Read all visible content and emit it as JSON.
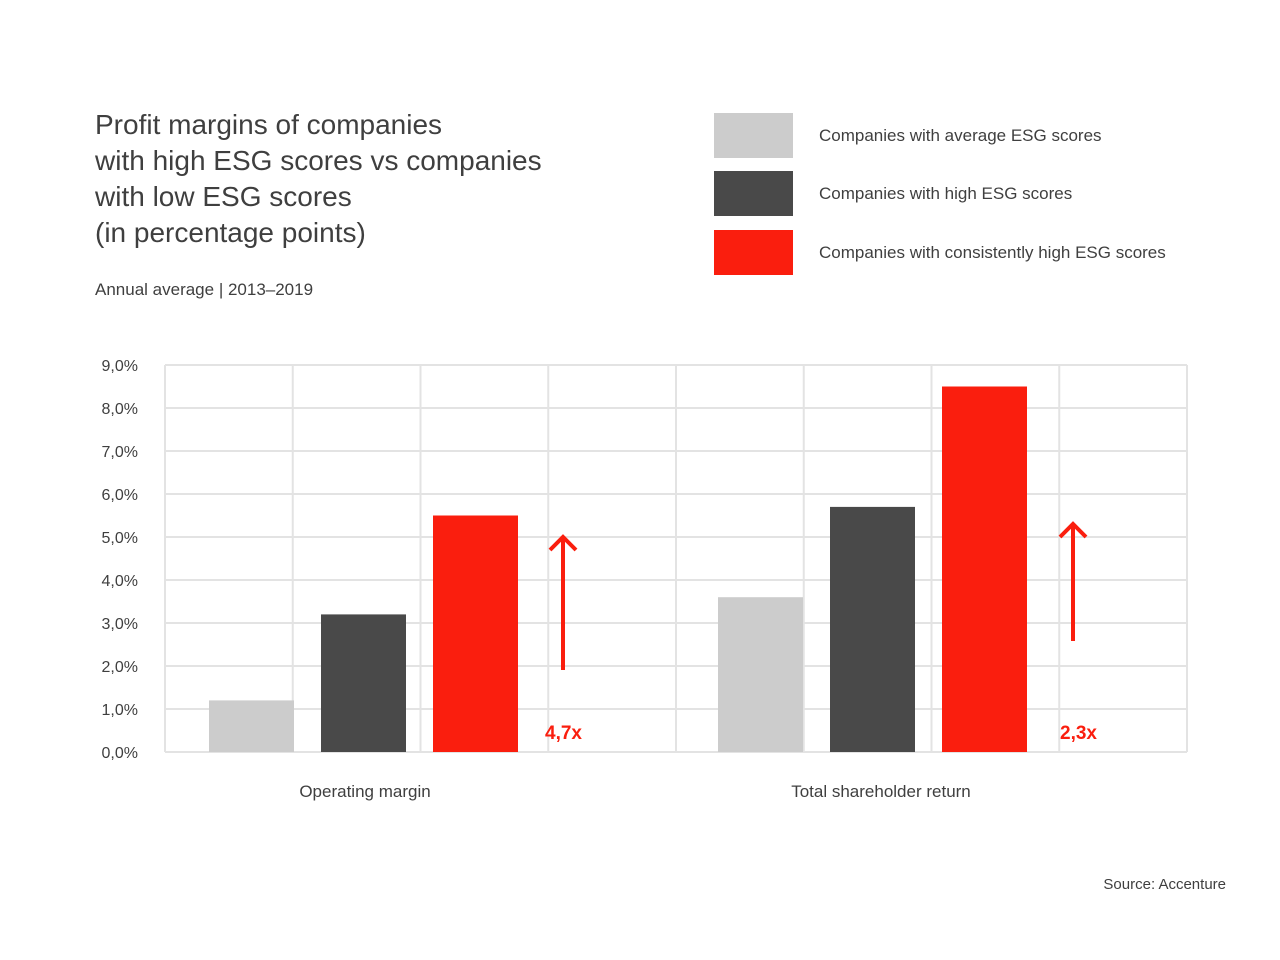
{
  "title_lines": [
    "Profit margins of companies",
    "with high ESG scores vs companies",
    "with low ESG scores",
    "(in percentage points)"
  ],
  "subtitle": "Annual average | 2013–2019",
  "source": "Source: Accenture",
  "legend": [
    {
      "label": "Companies with average ESG scores",
      "color": "#cccccc"
    },
    {
      "label": "Companies with high ESG scores",
      "color": "#494949"
    },
    {
      "label": "Companies with consistently high ESG scores",
      "color": "#fa1e0e"
    }
  ],
  "chart_data": {
    "type": "bar",
    "categories": [
      "Operating margin",
      "Total shareholder return"
    ],
    "series": [
      {
        "name": "Companies with average ESG scores",
        "color": "#cccccc",
        "values": [
          1.2,
          3.6
        ]
      },
      {
        "name": "Companies with high ESG scores",
        "color": "#494949",
        "values": [
          3.2,
          5.7
        ]
      },
      {
        "name": "Companies with consistently high ESG scores",
        "color": "#fa1e0e",
        "values": [
          5.5,
          8.5
        ]
      }
    ],
    "ylim": [
      0,
      9
    ],
    "yticks": [
      "0,0%",
      "1,0%",
      "2,0%",
      "3,0%",
      "4,0%",
      "5,0%",
      "6,0%",
      "7,0%",
      "8,0%",
      "9,0%"
    ],
    "annotations": [
      "4,7x",
      "2,3x"
    ],
    "grid": true,
    "legend_position": "top-right"
  }
}
